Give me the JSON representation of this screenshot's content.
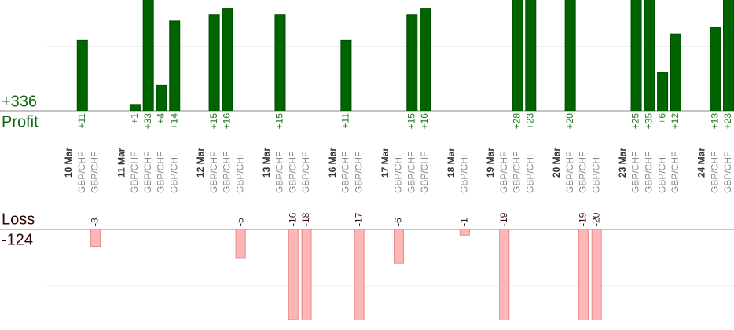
{
  "chart_data": {
    "type": "bar",
    "profit_title": "Profit",
    "profit_total": "+336",
    "loss_title": "Loss",
    "loss_total": "-124",
    "profit_ylim": [
      0,
      17.3
    ],
    "loss_ylim": [
      -16,
      0
    ],
    "profit_grid": [
      10
    ],
    "loss_grid": [
      -10
    ],
    "days": [
      {
        "date": "10 Mar",
        "trades": [
          {
            "symbol": "GBP/CHF",
            "value": 11,
            "value_label": "+11"
          },
          {
            "symbol": "GBP/CHF",
            "value": -3
          }
        ]
      },
      {
        "date": "11 Mar",
        "trades": [
          {
            "symbol": "GBP/CHF",
            "value": 1,
            "value_label": "+1"
          },
          {
            "symbol": "GBP/CHF",
            "value": 33,
            "value_label": "+33"
          },
          {
            "symbol": "GBP/CHF",
            "value": 4,
            "value_label": "+4"
          },
          {
            "symbol": "GBP/CHF",
            "value": 14,
            "value_label": "+14"
          }
        ]
      },
      {
        "date": "12 Mar",
        "trades": [
          {
            "symbol": "GBP/CHF",
            "value": 15,
            "value_label": "+15"
          },
          {
            "symbol": "GBP/CHF",
            "value": 16,
            "value_label": "+16"
          },
          {
            "symbol": "GBP/CHF",
            "value": -5
          }
        ]
      },
      {
        "date": "13 Mar",
        "trades": [
          {
            "symbol": "GBP/CHF",
            "value": 15,
            "value_label": "+15"
          },
          {
            "symbol": "GBP/CHF",
            "value": -16
          },
          {
            "symbol": "GBP/CHF",
            "value": -18
          }
        ]
      },
      {
        "date": "16 Mar",
        "trades": [
          {
            "symbol": "GBP/CHF",
            "value": 11,
            "value_label": "+11"
          },
          {
            "symbol": "GBP/CHF",
            "value": -17
          }
        ]
      },
      {
        "date": "17 Mar",
        "trades": [
          {
            "symbol": "GBP/CHF",
            "value": -6
          },
          {
            "symbol": "GBP/CHF",
            "value": 15,
            "value_label": "+15"
          },
          {
            "symbol": "GBP/CHF",
            "value": 16,
            "value_label": "+16"
          }
        ]
      },
      {
        "date": "18 Mar",
        "trades": [
          {
            "symbol": "GBP/CHF",
            "value": -1
          }
        ]
      },
      {
        "date": "19 Mar",
        "trades": [
          {
            "symbol": "GBP/CHF",
            "value": -19
          },
          {
            "symbol": "GBP/CHF",
            "value": 28,
            "value_label": "+28"
          },
          {
            "symbol": "GBP/CHF",
            "value": 23,
            "value_label": "+23"
          }
        ]
      },
      {
        "date": "20 Mar",
        "trades": [
          {
            "symbol": "GBP/CHF",
            "value": 20,
            "value_label": "+20"
          },
          {
            "symbol": "GBP/CHF",
            "value": -19
          },
          {
            "symbol": "GBP/CHF",
            "value": -20
          }
        ]
      },
      {
        "date": "23 Mar",
        "trades": [
          {
            "symbol": "GBP/CHF",
            "value": 25,
            "value_label": "+25"
          },
          {
            "symbol": "GBP/CHF",
            "value": 35,
            "value_label": "+35"
          },
          {
            "symbol": "GBP/CHF",
            "value": 6,
            "value_label": "+6"
          },
          {
            "symbol": "GBP/CHF",
            "value": 12,
            "value_label": "+12"
          }
        ]
      },
      {
        "date": "24 Mar",
        "trades": [
          {
            "symbol": "GBP/CHF",
            "value": 13,
            "value_label": "+13"
          },
          {
            "symbol": "GBP/CHF",
            "value": 23,
            "value_label": "+23"
          }
        ]
      }
    ]
  }
}
